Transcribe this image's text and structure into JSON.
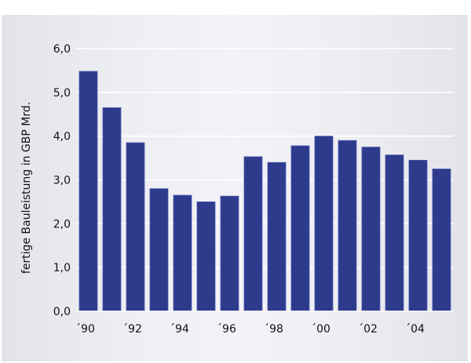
{
  "chart_data": {
    "type": "bar",
    "title": "",
    "xlabel": "",
    "ylabel": "fertige Bauleistung in GBP Mrd.",
    "categories": [
      "´90",
      "´91",
      "´92",
      "´93",
      "´94",
      "´95",
      "´96",
      "´97",
      "´98",
      "´99",
      "´00",
      "´01",
      "´02",
      "´03",
      "´04",
      "´05"
    ],
    "x_tick_labels": [
      "´90",
      "",
      "´92",
      "",
      "´94",
      "",
      "´96",
      "",
      "´98",
      "",
      "´00",
      "",
      "´02",
      "",
      "´04",
      ""
    ],
    "values": [
      5.48,
      4.65,
      3.85,
      2.8,
      2.65,
      2.5,
      2.63,
      3.53,
      3.4,
      3.78,
      4.0,
      3.9,
      3.75,
      3.57,
      3.45,
      3.25
    ],
    "ylim": [
      0,
      6
    ],
    "y_ticks": [
      "0,0",
      "1,0",
      "2,0",
      "3,0",
      "4,0",
      "5,0",
      "6,0"
    ],
    "grid": true,
    "colors": {
      "bar": "#2e3a8c",
      "bar_edge": "#4a58b0",
      "grid": "#ffffff",
      "background": "#eceef2"
    }
  }
}
